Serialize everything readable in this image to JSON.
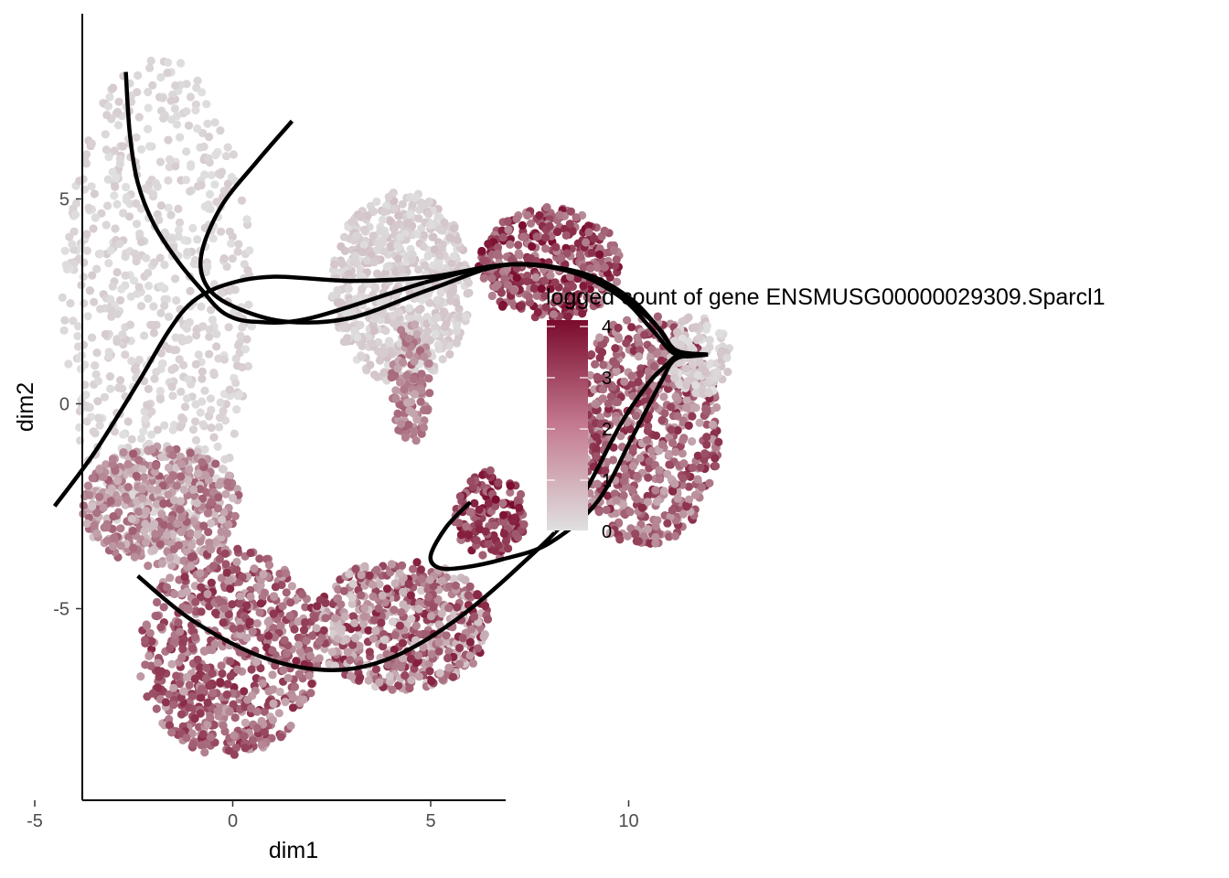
{
  "chart_data": {
    "type": "scatter",
    "title": "",
    "xlabel": "dim1",
    "ylabel": "dim2",
    "xlim": [
      -7.4,
      13.6
    ],
    "ylim": [
      -9.6,
      9.6
    ],
    "x_ticks": [
      -5,
      0,
      5,
      10
    ],
    "y_ticks": [
      -5,
      0,
      5
    ],
    "grid": false,
    "legend": {
      "title": "logged count of gene ENSMUSG00000029309.Sparcl1",
      "placement": "right",
      "range": [
        0,
        4
      ],
      "ticks": [
        0,
        1,
        2,
        3,
        4
      ],
      "color_low": "#e0e0e0",
      "color_high": "#7a0b2c"
    },
    "point_cloud_regions": [
      {
        "x": [
          -4.3,
          0.5
        ],
        "y": [
          -3.5,
          8.5
        ],
        "value_range": [
          0,
          0.4
        ]
      },
      {
        "x": [
          -3.8,
          0.2
        ],
        "y": [
          -4.0,
          -1.0
        ],
        "value_range": [
          0.5,
          2.5
        ]
      },
      {
        "x": [
          -2.4,
          2.2
        ],
        "y": [
          -8.6,
          -3.5
        ],
        "value_range": [
          1.0,
          3.5
        ]
      },
      {
        "x": [
          2.0,
          6.5
        ],
        "y": [
          -7.0,
          -3.8
        ],
        "value_range": [
          0.3,
          3.6
        ]
      },
      {
        "x": [
          2.5,
          6.0
        ],
        "y": [
          0.5,
          5.2
        ],
        "value_range": [
          0,
          0.6
        ]
      },
      {
        "x": [
          6.2,
          9.8
        ],
        "y": [
          2.0,
          4.8
        ],
        "value_range": [
          1.5,
          4.0
        ]
      },
      {
        "x": [
          8.5,
          12.3
        ],
        "y": [
          -3.5,
          2.2
        ],
        "value_range": [
          1.0,
          3.5
        ]
      },
      {
        "x": [
          11.0,
          12.6
        ],
        "y": [
          0.2,
          2.2
        ],
        "value_range": [
          0,
          0.6
        ]
      },
      {
        "x": [
          5.6,
          7.4
        ],
        "y": [
          -3.8,
          -1.6
        ],
        "value_range": [
          2.0,
          4.0
        ]
      },
      {
        "x": [
          4.0,
          5.0
        ],
        "y": [
          -1.0,
          2.0
        ],
        "value_range": [
          1.0,
          2.5
        ]
      }
    ],
    "trajectories": [
      {
        "x": [
          -2.7,
          -2.6,
          -2.4,
          -2.0,
          -1.4,
          -0.8,
          -0.2,
          0.6,
          2.0,
          5.0,
          7.0,
          8.6,
          9.8,
          10.6,
          11.2,
          12.0
        ],
        "y": [
          8.1,
          6.6,
          5.4,
          4.4,
          3.5,
          2.8,
          2.2,
          2.0,
          2.1,
          3.0,
          3.4,
          3.2,
          2.6,
          1.8,
          1.2,
          1.2
        ]
      },
      {
        "x": [
          1.5,
          0.6,
          -0.3,
          -0.8,
          -0.6,
          0.2,
          1.4,
          3.0,
          5.0,
          7.0,
          9.0,
          10.5,
          11.2,
          12.0
        ],
        "y": [
          6.9,
          5.9,
          4.8,
          3.6,
          2.8,
          2.3,
          2.0,
          2.1,
          2.8,
          3.4,
          3.1,
          2.1,
          1.3,
          1.2
        ]
      },
      {
        "x": [
          -4.5,
          -3.5,
          -2.4,
          -1.6,
          -1.0,
          -0.2,
          1.0,
          3.0,
          5.0,
          7.0,
          8.8,
          10.0,
          10.8,
          11.2,
          12.0
        ],
        "y": [
          -2.5,
          -1.2,
          0.5,
          1.8,
          2.5,
          2.9,
          3.1,
          3.0,
          3.1,
          3.4,
          3.2,
          2.6,
          1.8,
          1.3,
          1.2
        ]
      },
      {
        "x": [
          -2.4,
          -1.0,
          0.8,
          2.5,
          4.0,
          5.6,
          7.2,
          8.6,
          9.8,
          10.5,
          10.9,
          11.3,
          12.0
        ],
        "y": [
          -4.2,
          -5.3,
          -6.2,
          -6.5,
          -6.2,
          -5.3,
          -4.0,
          -2.6,
          -0.5,
          0.5,
          0.9,
          1.2,
          1.2
        ]
      },
      {
        "x": [
          6.0,
          5.4,
          5.0,
          5.2,
          5.8,
          6.8,
          8.0,
          9.2,
          10.1,
          10.8,
          11.2,
          12.0
        ],
        "y": [
          -2.4,
          -3.0,
          -3.7,
          -4.0,
          -4.0,
          -3.8,
          -3.4,
          -2.4,
          -0.8,
          0.5,
          1.1,
          1.2
        ]
      }
    ]
  }
}
